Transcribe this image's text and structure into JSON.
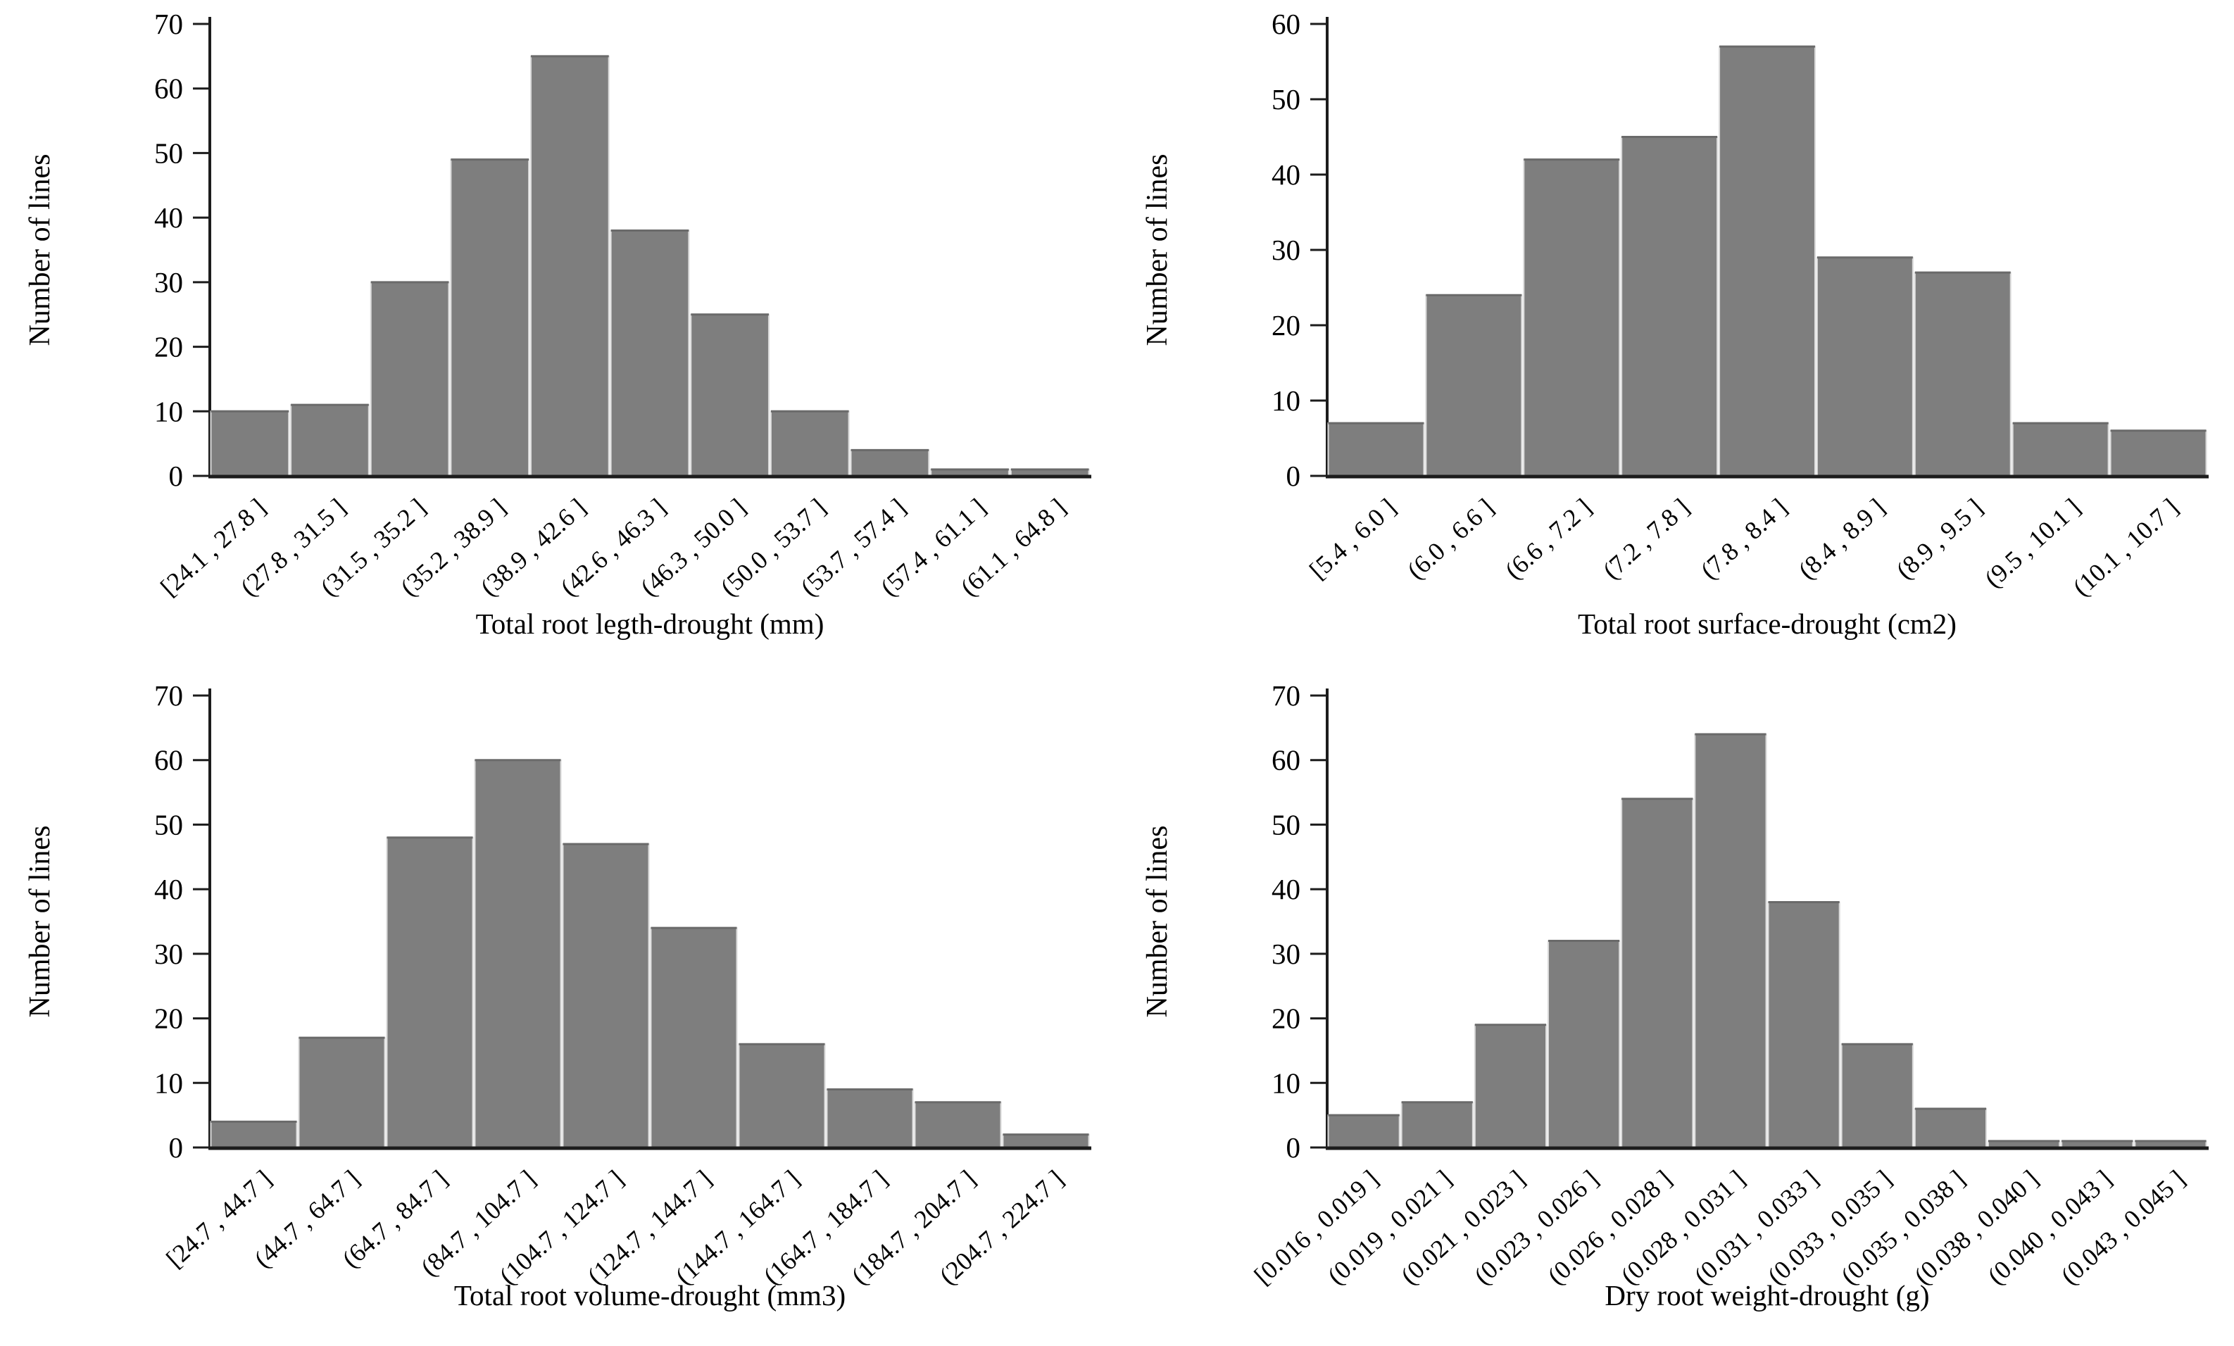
{
  "figure": {
    "background_color": "#ffffff",
    "bar_fill_color": "#7e7e7e",
    "bar_edge_color": "#d9d9d9",
    "bar_top_edge_color": "#6a6a6a",
    "axis_color": "#1c1c1c",
    "text_color": "#000000"
  },
  "chart_data": [
    {
      "id": "total-root-length-drought",
      "type": "bar",
      "title": "Total root legth-drought  (mm)",
      "xlabel": "",
      "ylabel": "Number of lines",
      "ylim": [
        0,
        70
      ],
      "ytick_step": 10,
      "grid": "off",
      "legend": "none",
      "categories": [
        "[24.1 , 27.8 ]",
        "(27.8 , 31.5 ]",
        "(31.5 , 35.2 ]",
        "(35.2 , 38.9 ]",
        "(38.9 , 42.6 ]",
        "(42.6 , 46.3 ]",
        "(46.3 , 50.0 ]",
        "(50.0 , 53.7 ]",
        "(53.7 , 57.4 ]",
        "(57.4 , 61.1 ]",
        "(61.1 , 64.8 ]"
      ],
      "values": [
        10,
        11,
        30,
        49,
        65,
        38,
        25,
        10,
        4,
        1,
        1
      ]
    },
    {
      "id": "total-root-surface-drought",
      "type": "bar",
      "title": "Total root surface-drought  (cm2)",
      "xlabel": "",
      "ylabel": "Number of lines",
      "ylim": [
        0,
        60
      ],
      "ytick_step": 10,
      "grid": "off",
      "legend": "none",
      "categories": [
        "[5.4 , 6.0 ]",
        "(6.0 , 6.6 ]",
        "(6.6 , 7.2 ]",
        "(7.2 , 7.8 ]",
        "(7.8 , 8.4 ]",
        "(8.4 , 8.9 ]",
        "(8.9 , 9.5 ]",
        "(9.5 , 10.1 ]",
        "(10.1 , 10.7 ]"
      ],
      "values": [
        7,
        24,
        42,
        45,
        57,
        29,
        27,
        7,
        6
      ]
    },
    {
      "id": "total-root-volume-drought",
      "type": "bar",
      "title": "Total root volume-drought  (mm3)",
      "xlabel": "",
      "ylabel": "Number of lines",
      "ylim": [
        0,
        70
      ],
      "ytick_step": 10,
      "grid": "off",
      "legend": "none",
      "categories": [
        "[24.7 , 44.7 ]",
        "(44.7 , 64.7 ]",
        "(64.7 , 84.7 ]",
        "(84.7 , 104.7 ]",
        "(104.7 , 124.7 ]",
        "(124.7 , 144.7 ]",
        "(144.7 , 164.7 ]",
        "(164.7 , 184.7 ]",
        "(184.7 , 204.7 ]",
        "(204.7 , 224.7 ]"
      ],
      "values": [
        4,
        17,
        48,
        60,
        47,
        34,
        16,
        9,
        7,
        2
      ]
    },
    {
      "id": "dry-root-weight-drought",
      "type": "bar",
      "title": "Dry root weight-drought  (g)",
      "xlabel": "",
      "ylabel": "Number of lines",
      "ylim": [
        0,
        70
      ],
      "ytick_step": 10,
      "grid": "off",
      "legend": "none",
      "categories": [
        "[0.016 , 0.019 ]",
        "(0.019 , 0.021 ]",
        "(0.021 , 0.023 ]",
        "(0.023 , 0.026 ]",
        "(0.026 , 0.028 ]",
        "(0.028 , 0.031 ]",
        "(0.031 , 0.033 ]",
        "(0.033 , 0.035 ]",
        "(0.035 , 0.038 ]",
        "(0.038 , 0.040 ]",
        "(0.040 , 0.043 ]",
        "(0.043 , 0.045 ]"
      ],
      "values": [
        5,
        7,
        19,
        32,
        54,
        64,
        38,
        16,
        6,
        1,
        1,
        1
      ]
    }
  ]
}
